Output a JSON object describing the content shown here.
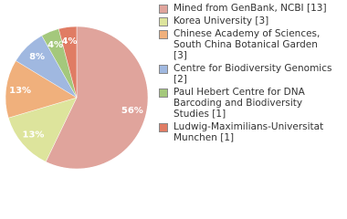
{
  "chart_data": {
    "type": "pie",
    "categories": [
      "Mined from GenBank, NCBI [13]",
      "Korea University [3]",
      "Chinese Academy of Sciences, South China Botanical Garden [3]",
      "Centre for Biodiversity Genomics [2]",
      "Paul Hebert Centre for DNA Barcoding and Biodiversity Studies [1]",
      "Ludwig-Maximilians-Universitat Munchen [1]"
    ],
    "values": [
      56,
      13,
      13,
      8,
      4,
      4
    ],
    "value_labels": [
      "56%",
      "13%",
      "13%",
      "8%",
      "4%",
      "4%"
    ],
    "colors": [
      "#e0a49c",
      "#dde49c",
      "#f0b07c",
      "#a0b8e0",
      "#a4c87c",
      "#e07c64"
    ],
    "legend": "right"
  }
}
